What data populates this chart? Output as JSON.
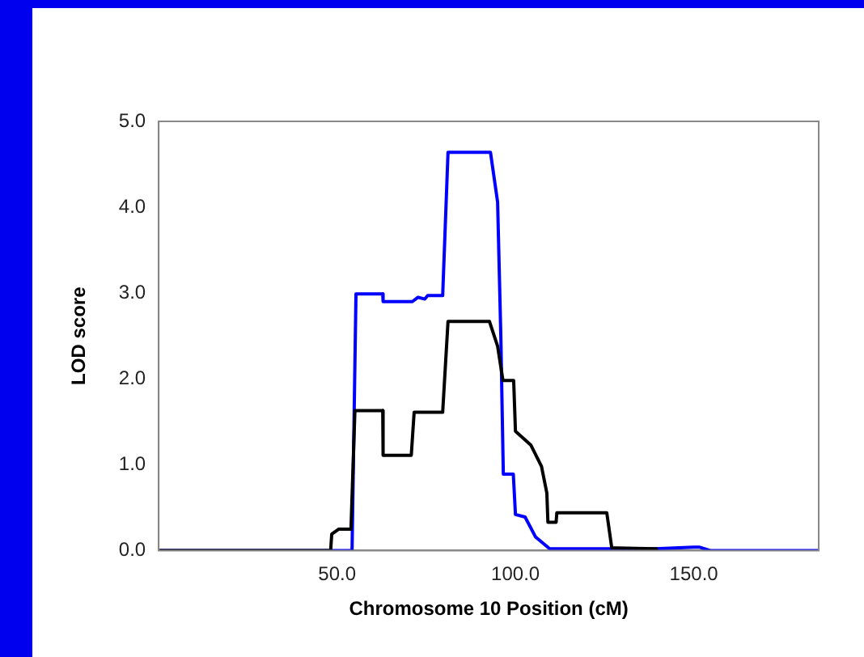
{
  "chart_data": {
    "type": "line",
    "xlabel": "Chromosome 10 Position (cM)",
    "ylabel": "LOD score",
    "xlim": [
      0,
      185
    ],
    "xticks": [
      {
        "value": 50,
        "label": "50.0"
      },
      {
        "value": 100,
        "label": "100.0"
      },
      {
        "value": 150,
        "label": "150.0"
      }
    ],
    "ylim": [
      0,
      5
    ],
    "yticks": [
      {
        "value": 0,
        "label": "0.0"
      },
      {
        "value": 1,
        "label": "1.0"
      },
      {
        "value": 2,
        "label": "2.0"
      },
      {
        "value": 3,
        "label": "3.0"
      },
      {
        "value": 4,
        "label": "4.0"
      },
      {
        "value": 5,
        "label": "5.0"
      }
    ],
    "grid": false,
    "legend": false,
    "marker": "none",
    "line_style": "solid",
    "series": [
      {
        "color": "#000000",
        "x": [
          0,
          48.2,
          48.5,
          50.5,
          53.9,
          55,
          62.8,
          62.9,
          70.8,
          71.6,
          79.6,
          81.1,
          92.7,
          95,
          96.5,
          99.5,
          100,
          104.3,
          107.3,
          108.8,
          109.1,
          111.4,
          111.6,
          125.6,
          127,
          139.3,
          139.5
        ],
        "values": [
          0,
          0,
          0.19,
          0.25,
          0.25,
          1.63,
          1.63,
          1.11,
          1.11,
          1.61,
          1.61,
          2.67,
          2.67,
          2.38,
          1.98,
          1.98,
          1.39,
          1.23,
          0.98,
          0.67,
          0.33,
          0.33,
          0.44,
          0.44,
          0.03,
          0.02,
          0
        ]
      },
      {
        "color": "#0000ff",
        "x": [
          0,
          54.2,
          55.3,
          62.8,
          62.9,
          71.1,
          72.7,
          74.6,
          75.4,
          79.6,
          81.1,
          93,
          95,
          95.9,
          96.6,
          99.4,
          100,
          102.7,
          105.6,
          109.6,
          127,
          128,
          150,
          151.5,
          154.6,
          185
        ],
        "values": [
          0,
          0,
          2.99,
          2.99,
          2.9,
          2.9,
          2.95,
          2.93,
          2.97,
          2.97,
          4.64,
          4.64,
          4.06,
          2.5,
          0.89,
          0.89,
          0.42,
          0.39,
          0.16,
          0.02,
          0.02,
          0,
          0.04,
          0.04,
          0,
          0
        ]
      }
    ]
  }
}
